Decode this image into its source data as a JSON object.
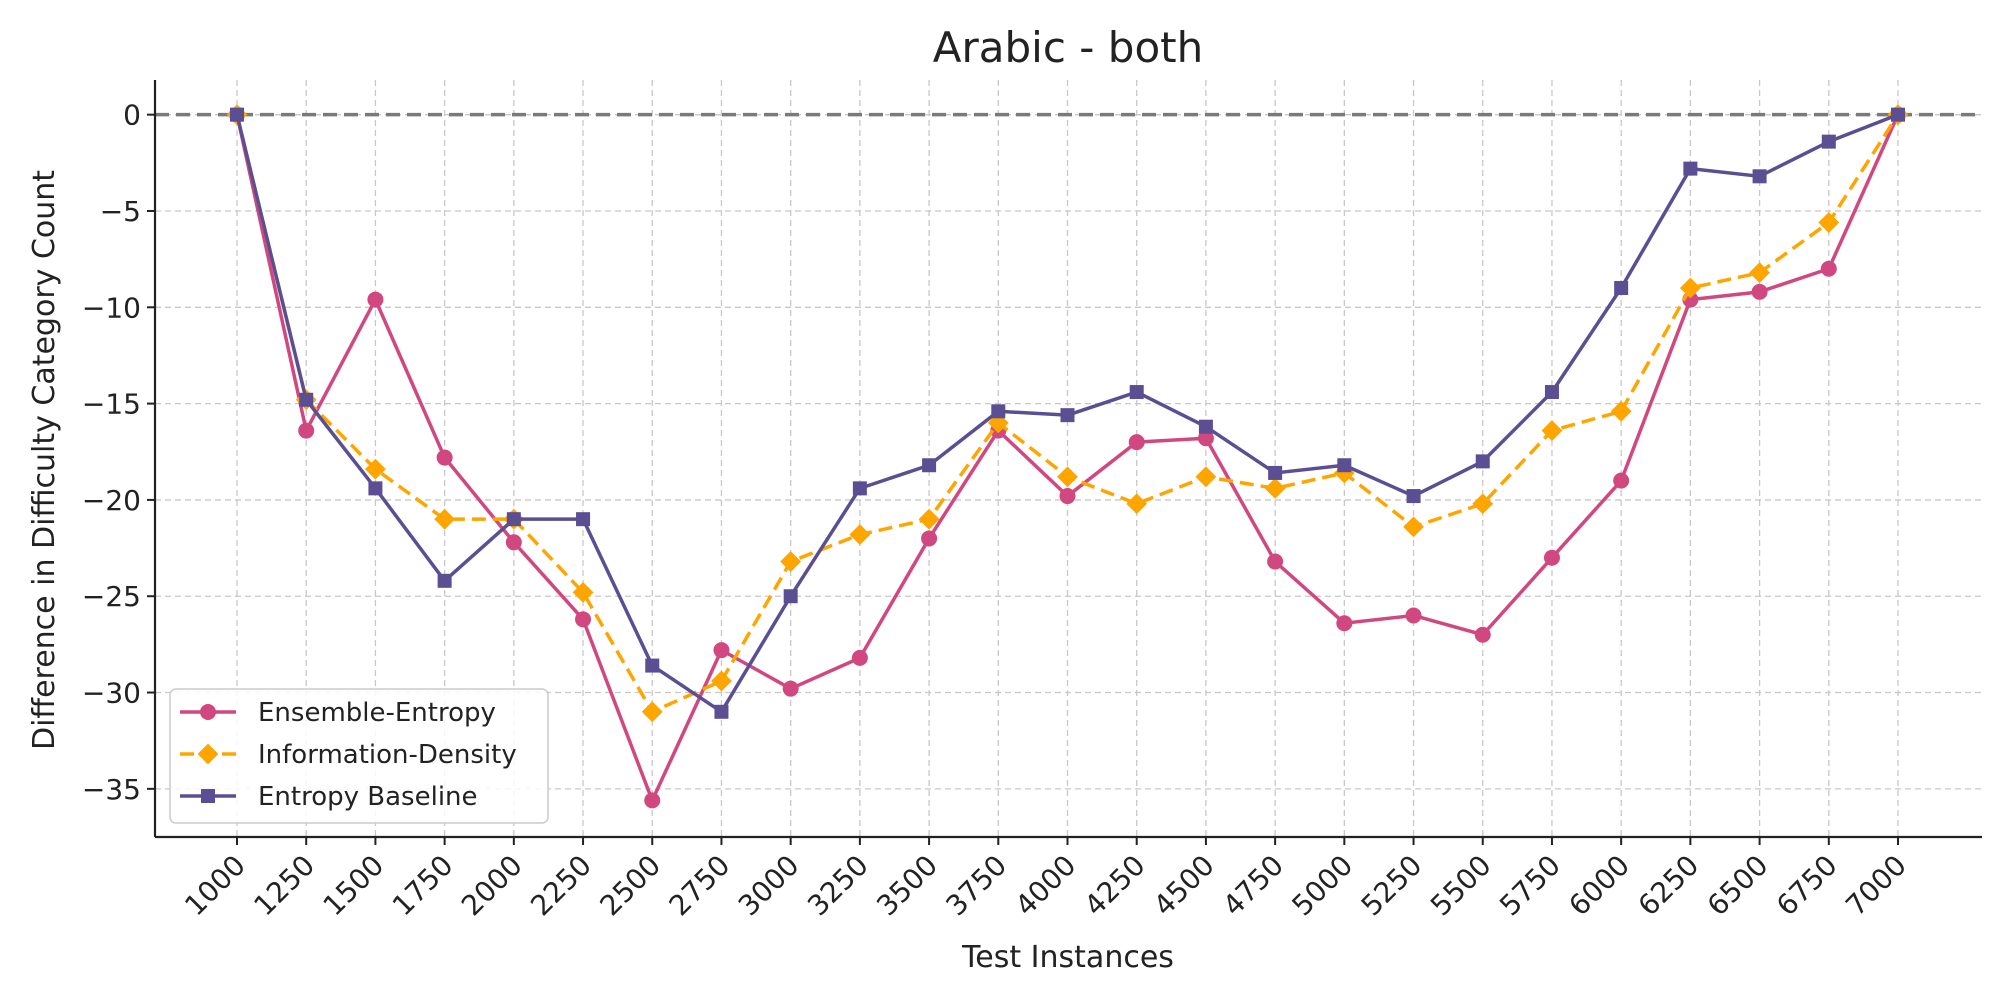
{
  "chart_data": {
    "type": "line",
    "title": "Arabic - both",
    "xlabel": "Test Instances",
    "ylabel": "Difference in Difficulty Category Count",
    "x": [
      1000,
      1250,
      1500,
      1750,
      2000,
      2250,
      2500,
      2750,
      3000,
      3250,
      3500,
      3750,
      4000,
      4250,
      4500,
      4750,
      5000,
      5250,
      5500,
      5750,
      6000,
      6250,
      6500,
      6750,
      7000
    ],
    "x_tick_labels": [
      "1000",
      "1250",
      "1500",
      "1750",
      "2000",
      "2250",
      "2500",
      "2750",
      "3000",
      "3250",
      "3500",
      "3750",
      "4000",
      "4250",
      "4500",
      "4750",
      "5000",
      "5250",
      "5500",
      "5750",
      "6000",
      "6250",
      "6500",
      "6750",
      "7000"
    ],
    "y_ticks": [
      0,
      -5,
      -10,
      -15,
      -20,
      -25,
      -30,
      -35
    ],
    "y_tick_labels": [
      "0",
      "−5",
      "−10",
      "−15",
      "−20",
      "−25",
      "−30",
      "−35"
    ],
    "ylim": [
      -37.5,
      1.8
    ],
    "grid": true,
    "reference_line": {
      "y": 0,
      "style": "dashed",
      "color": "#7a7a7a"
    },
    "legend": {
      "position": "lower-left"
    },
    "series": [
      {
        "name": "Ensemble-Entropy",
        "color": "#d0487f",
        "marker": "circle",
        "line_style": "solid",
        "values": [
          0,
          -16.4,
          -9.6,
          -17.8,
          -22.2,
          -26.2,
          -35.6,
          -27.8,
          -29.8,
          -28.2,
          -22.0,
          -16.4,
          -19.8,
          -17.0,
          -16.8,
          -23.2,
          -26.4,
          -26.0,
          -27.0,
          -23.0,
          -19.0,
          -9.6,
          -9.2,
          -8.0,
          0
        ]
      },
      {
        "name": "Information-Density",
        "color": "#ffa500",
        "marker": "diamond",
        "line_style": "dashed",
        "values": [
          0,
          -14.8,
          -18.4,
          -21.0,
          -21.0,
          -24.8,
          -31.0,
          -29.4,
          -23.2,
          -21.8,
          -21.0,
          -16.0,
          -18.8,
          -20.2,
          -18.8,
          -19.4,
          -18.6,
          -21.4,
          -20.2,
          -16.4,
          -15.4,
          -9.0,
          -8.2,
          -5.6,
          0
        ]
      },
      {
        "name": "Entropy Baseline",
        "color": "#5b4e92",
        "marker": "square",
        "line_style": "solid",
        "values": [
          0,
          -14.8,
          -19.4,
          -24.2,
          -21.0,
          -21.0,
          -28.6,
          -31.0,
          -25.0,
          -19.4,
          -18.2,
          -15.4,
          -15.6,
          -14.4,
          -16.2,
          -18.6,
          -18.2,
          -19.8,
          -18.0,
          -14.4,
          -9.0,
          -2.8,
          -3.2,
          -1.4,
          0
        ]
      }
    ]
  }
}
